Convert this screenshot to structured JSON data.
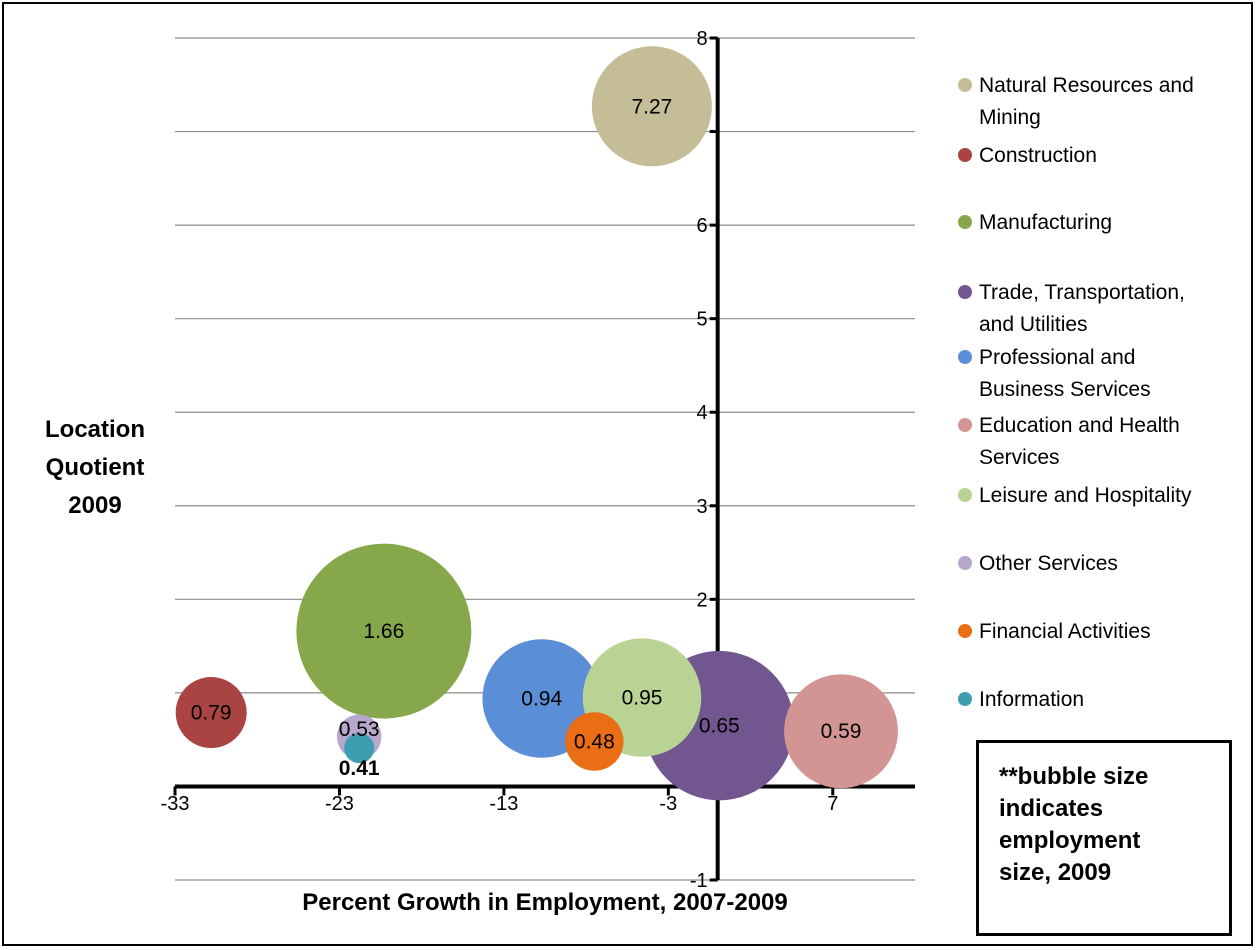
{
  "chart_data": {
    "type": "bubble",
    "xlabel": "Percent Growth in Employment, 2007-2009",
    "ylabel_lines": [
      "Location",
      "Quotient",
      "2009"
    ],
    "x_ticks": [
      "-33",
      "-23",
      "-13",
      "-3",
      "7"
    ],
    "y_ticks": [
      "-1",
      "0",
      "1",
      "2",
      "3",
      "4",
      "5",
      "6",
      "7",
      "8"
    ],
    "xlim": [
      -33,
      12
    ],
    "ylim": [
      -1,
      8
    ],
    "grid": true,
    "legend_position": "right",
    "note_lines": [
      "**bubble size",
      "indicates",
      "employment",
      "size, 2009"
    ],
    "series": [
      {
        "name": "Natural Resources and Mining",
        "name_lines": [
          "Natural Resources and",
          "Mining"
        ],
        "x": -4.0,
        "y": 7.27,
        "label": "7.27",
        "size": 4.0,
        "color": "#c4bd97"
      },
      {
        "name": "Construction",
        "name_lines": [
          "Construction"
        ],
        "x": -30.8,
        "y": 0.79,
        "label": "0.79",
        "size": 1.4,
        "color": "#a94442"
      },
      {
        "name": "Manufacturing",
        "name_lines": [
          "Manufacturing"
        ],
        "x": -20.3,
        "y": 1.66,
        "label": "1.66",
        "size": 8.5,
        "color": "#86a84b"
      },
      {
        "name": "Trade, Transportation, and Utilities",
        "name_lines": [
          "Trade, Transportation,",
          "and Utilities"
        ],
        "x": 0.1,
        "y": 0.65,
        "label": "0.65",
        "size": 6.2,
        "color": "#725690"
      },
      {
        "name": "Professional and Business Services",
        "name_lines": [
          "Professional and",
          "Business Services"
        ],
        "x": -10.7,
        "y": 0.94,
        "label": "0.94",
        "size": 3.9,
        "color": "#5a8fd8"
      },
      {
        "name": "Education and Health Services",
        "name_lines": [
          "Education and Health",
          "Services"
        ],
        "x": 7.5,
        "y": 0.59,
        "label": "0.59",
        "size": 3.6,
        "color": "#d39594"
      },
      {
        "name": "Leisure and Hospitality",
        "name_lines": [
          "Leisure and Hospitality"
        ],
        "x": -4.6,
        "y": 0.95,
        "label": "0.95",
        "size": 3.9,
        "color": "#b9d395"
      },
      {
        "name": "Other Services",
        "name_lines": [
          "Other Services"
        ],
        "x": -21.8,
        "y": 0.53,
        "label": "0.53",
        "size": 0.55,
        "color": "#b7a7cc"
      },
      {
        "name": "Financial Activities",
        "name_lines": [
          "Financial Activities"
        ],
        "x": -7.5,
        "y": 0.48,
        "label": "0.48",
        "size": 0.95,
        "color": "#e96e16"
      },
      {
        "name": "Information",
        "name_lines": [
          "Information"
        ],
        "x": -21.8,
        "y": 0.41,
        "label": "0.41",
        "size": 0.25,
        "color": "#3c9eb0"
      }
    ]
  }
}
